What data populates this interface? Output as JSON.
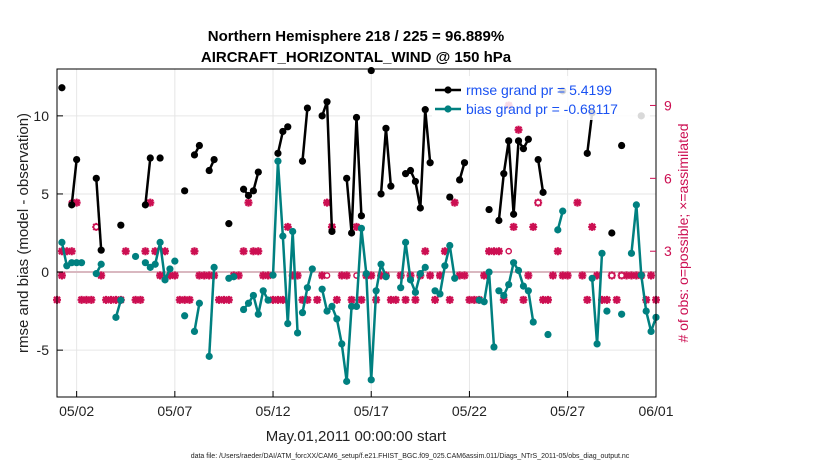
{
  "chart_data": {
    "type": "line",
    "title_line1": "Northern Hemisphere 218 / 225 = 96.889%",
    "title_line2": "AIRCRAFT_HORIZONTAL_WIND @ 150 hPa",
    "xlabel": "May.01,2011 00:00:00 start",
    "ylabel_left": "rmse and bias (model - observation)",
    "ylabel_right": "# of obs: o=possible; ×=assimilated",
    "footer": "data file: /Users/raeder/DAI/ATM_forcXX/CAM6_setup/f.e21.FHIST_BGC.f09_025.CAM6assim.011/Diags_NTrS_2011-05/obs_diag_output.nc",
    "xlim": [
      0.5,
      31.0
    ],
    "ylim_left": [
      -8,
      13
    ],
    "ylim_right": [
      -3,
      10.5
    ],
    "x_tick_values": [
      1.5,
      6.5,
      11.5,
      16.5,
      21.5,
      26.5,
      31.5
    ],
    "x_tick_labels": [
      "05/02",
      "05/07",
      "05/12",
      "05/17",
      "05/22",
      "05/27",
      "06/01"
    ],
    "y_tick_values_left": [
      -5,
      0,
      5,
      10
    ],
    "y_tick_labels_left": [
      "-5",
      "0",
      "5",
      "10"
    ],
    "y_tick_values_right": [
      3,
      6,
      9
    ],
    "y_tick_labels_right": [
      "3",
      "6",
      "9"
    ],
    "zero_line": 0,
    "colors": {
      "rmse": "#000000",
      "bias": "#008080",
      "obs": "#cc0f52",
      "zero": "#d9b8c0"
    },
    "legend": [
      {
        "name": "rmse grand pr = 5.4199",
        "color": "#000000"
      },
      {
        "name": "bias grand pr = -0.68117",
        "color": "#008080"
      }
    ],
    "series": [
      {
        "name": "rmse",
        "segments": [
          [
            [
              0.75,
              11.8
            ]
          ],
          [
            [
              1.25,
              4.3
            ],
            [
              1.5,
              7.2
            ]
          ],
          [
            [
              2.5,
              6.0
            ],
            [
              2.75,
              1.4
            ]
          ],
          [
            [
              3.75,
              3.0
            ]
          ],
          [
            [
              5.0,
              4.3
            ],
            [
              5.25,
              7.3
            ]
          ],
          [
            [
              5.75,
              7.3
            ]
          ],
          [
            [
              7.0,
              5.2
            ]
          ],
          [
            [
              7.5,
              7.5
            ],
            [
              7.75,
              8.1
            ]
          ],
          [
            [
              8.25,
              6.5
            ],
            [
              8.5,
              7.2
            ]
          ],
          [
            [
              9.25,
              3.1
            ]
          ],
          [
            [
              10.0,
              5.3
            ],
            [
              10.25,
              4.9
            ]
          ],
          [
            [
              10.5,
              5.2
            ],
            [
              10.75,
              6.4
            ]
          ],
          [
            [
              11.75,
              7.6
            ],
            [
              12.0,
              9.0
            ],
            [
              12.25,
              9.3
            ]
          ],
          [
            [
              13.0,
              7.1
            ],
            [
              13.25,
              10.5
            ]
          ],
          [
            [
              14.0,
              10.0
            ],
            [
              14.25,
              10.9
            ],
            [
              14.5,
              2.6
            ]
          ],
          [
            [
              15.25,
              6.0
            ],
            [
              15.5,
              2.5
            ],
            [
              15.75,
              9.9
            ],
            [
              16.0,
              3.6
            ]
          ],
          [
            [
              16.5,
              12.9
            ]
          ],
          [
            [
              17.0,
              5.0
            ],
            [
              17.25,
              9.2
            ],
            [
              17.5,
              5.5
            ]
          ],
          [
            [
              18.25,
              6.3
            ],
            [
              18.5,
              6.5
            ],
            [
              18.75,
              5.8
            ],
            [
              19.0,
              4.1
            ],
            [
              19.25,
              10.4
            ],
            [
              19.5,
              7.0
            ]
          ],
          [
            [
              20.5,
              4.8
            ]
          ],
          [
            [
              21.0,
              5.9
            ],
            [
              21.25,
              7.0
            ]
          ],
          [
            [
              22.5,
              4.0
            ]
          ],
          [
            [
              23.0,
              3.3
            ],
            [
              23.25,
              6.3
            ],
            [
              23.5,
              8.4
            ],
            [
              23.75,
              3.7
            ],
            [
              24.0,
              8.4
            ],
            [
              24.25,
              7.9
            ],
            [
              24.5,
              8.5
            ]
          ],
          [
            [
              25.0,
              7.2
            ],
            [
              25.25,
              5.1
            ]
          ],
          [
            [
              26.25,
              11.6
            ]
          ],
          [
            [
              27.5,
              7.6
            ],
            [
              27.75,
              10.2
            ]
          ],
          [
            [
              28.75,
              2.5
            ]
          ],
          [
            [
              29.25,
              8.1
            ]
          ],
          [
            [
              30.25,
              10.0
            ]
          ]
        ]
      },
      {
        "name": "bias",
        "segments": [
          [
            [
              0.75,
              1.9
            ],
            [
              1.0,
              0.4
            ],
            [
              1.25,
              0.6
            ],
            [
              1.5,
              0.6
            ],
            [
              1.75,
              0.6
            ]
          ],
          [
            [
              2.5,
              -0.1
            ],
            [
              2.75,
              0.5
            ]
          ],
          [
            [
              3.5,
              -2.9
            ],
            [
              3.75,
              -1.8
            ]
          ],
          [
            [
              4.5,
              1.0
            ]
          ],
          [
            [
              5.0,
              0.6
            ],
            [
              5.25,
              0.3
            ],
            [
              5.5,
              0.5
            ],
            [
              5.75,
              1.9
            ],
            [
              6.0,
              -0.5
            ],
            [
              6.25,
              0.2
            ]
          ],
          [
            [
              6.5,
              0.7
            ]
          ],
          [
            [
              7.0,
              -2.8
            ]
          ],
          [
            [
              7.5,
              -3.8
            ],
            [
              7.75,
              -2.0
            ]
          ],
          [
            [
              8.25,
              -5.4
            ],
            [
              8.5,
              0.3
            ]
          ],
          [
            [
              9.25,
              -0.4
            ],
            [
              9.5,
              -0.3
            ]
          ],
          [
            [
              10.0,
              -2.4
            ],
            [
              10.25,
              -2.0
            ],
            [
              10.5,
              -1.5
            ],
            [
              10.75,
              -2.7
            ],
            [
              11.0,
              -1.2
            ],
            [
              11.25,
              -1.8
            ]
          ],
          [
            [
              11.5,
              -0.2
            ],
            [
              11.75,
              7.1
            ],
            [
              12.0,
              2.3
            ],
            [
              12.25,
              -3.3
            ],
            [
              12.5,
              2.6
            ],
            [
              12.75,
              -3.9
            ]
          ],
          [
            [
              13.0,
              -2.6
            ],
            [
              13.25,
              -1.0
            ],
            [
              13.5,
              0.2
            ]
          ],
          [
            [
              14.0,
              -1.1
            ],
            [
              14.25,
              -2.5
            ],
            [
              14.5,
              -2.2
            ],
            [
              14.75,
              -3.0
            ],
            [
              15.0,
              -4.6
            ],
            [
              15.25,
              -7.0
            ],
            [
              15.5,
              -2.2
            ],
            [
              15.75,
              -2.2
            ],
            [
              16.0,
              2.8
            ],
            [
              16.25,
              -0.1
            ],
            [
              16.5,
              -6.9
            ],
            [
              16.75,
              -1.2
            ],
            [
              17.0,
              0.5
            ],
            [
              17.25,
              -0.3
            ]
          ],
          [
            [
              18.0,
              -1.0
            ],
            [
              18.25,
              1.9
            ],
            [
              18.5,
              -0.5
            ],
            [
              18.75,
              -1.3
            ],
            [
              19.0,
              -0.1
            ],
            [
              19.25,
              0.3
            ]
          ],
          [
            [
              19.75,
              -1.2
            ],
            [
              20.0,
              -1.4
            ],
            [
              20.25,
              0.4
            ],
            [
              20.5,
              1.7
            ],
            [
              20.75,
              -0.4
            ]
          ],
          [
            [
              22.0,
              -1.8
            ],
            [
              22.25,
              -1.9
            ],
            [
              22.5,
              0.0
            ],
            [
              22.75,
              -4.8
            ]
          ],
          [
            [
              23.0,
              -1.2
            ],
            [
              23.25,
              -1.5
            ],
            [
              23.5,
              -0.8
            ],
            [
              23.75,
              0.6
            ],
            [
              24.0,
              0.1
            ],
            [
              24.25,
              -0.9
            ],
            [
              24.5,
              -1.2
            ],
            [
              24.75,
              -3.2
            ]
          ],
          [
            [
              25.5,
              -4.0
            ]
          ],
          [
            [
              26.0,
              2.7
            ],
            [
              26.25,
              3.9
            ]
          ],
          [
            [
              27.75,
              -0.4
            ],
            [
              28.0,
              -4.6
            ],
            [
              28.25,
              1.2
            ]
          ],
          [
            [
              28.5,
              -2.5
            ]
          ],
          [
            [
              29.25,
              -2.7
            ]
          ],
          [
            [
              29.75,
              1.2
            ],
            [
              30.0,
              4.3
            ],
            [
              30.25,
              -0.2
            ],
            [
              30.5,
              -2.5
            ],
            [
              30.75,
              -3.8
            ],
            [
              31.0,
              -2.9
            ]
          ]
        ]
      }
    ],
    "obs_assimilated": [
      [
        0.5,
        1
      ],
      [
        0.75,
        3
      ],
      [
        0.75,
        2
      ],
      [
        1.0,
        3
      ],
      [
        1.25,
        3
      ],
      [
        1.5,
        5
      ],
      [
        1.75,
        1
      ],
      [
        2.0,
        1
      ],
      [
        2.25,
        1
      ],
      [
        2.5,
        4
      ],
      [
        2.75,
        2
      ],
      [
        3.0,
        1
      ],
      [
        3.25,
        1
      ],
      [
        3.5,
        1
      ],
      [
        3.75,
        1
      ],
      [
        4.0,
        3
      ],
      [
        4.5,
        1
      ],
      [
        4.75,
        1
      ],
      [
        5.0,
        3
      ],
      [
        5.25,
        5
      ],
      [
        5.5,
        3
      ],
      [
        5.75,
        2
      ],
      [
        6.0,
        3
      ],
      [
        6.25,
        2
      ],
      [
        6.5,
        2
      ],
      [
        6.75,
        1
      ],
      [
        7.0,
        1
      ],
      [
        7.25,
        1
      ],
      [
        7.5,
        3
      ],
      [
        7.75,
        2
      ],
      [
        8.0,
        2
      ],
      [
        8.25,
        2
      ],
      [
        8.5,
        2
      ],
      [
        8.75,
        1
      ],
      [
        9.0,
        1
      ],
      [
        9.25,
        1
      ],
      [
        9.5,
        2
      ],
      [
        9.75,
        2
      ],
      [
        10.0,
        3
      ],
      [
        10.25,
        5
      ],
      [
        10.5,
        3
      ],
      [
        10.75,
        3
      ],
      [
        11.0,
        2
      ],
      [
        11.25,
        2
      ],
      [
        11.5,
        1
      ],
      [
        11.75,
        1
      ],
      [
        12.0,
        1
      ],
      [
        12.25,
        4
      ],
      [
        12.5,
        2
      ],
      [
        12.75,
        2
      ],
      [
        13.0,
        1
      ],
      [
        13.25,
        1
      ],
      [
        13.75,
        1
      ],
      [
        14.0,
        2
      ],
      [
        14.25,
        5
      ],
      [
        14.5,
        4
      ],
      [
        14.75,
        1
      ],
      [
        15.0,
        2
      ],
      [
        15.25,
        2
      ],
      [
        15.5,
        1
      ],
      [
        15.75,
        4
      ],
      [
        16.0,
        1
      ],
      [
        16.25,
        2
      ],
      [
        16.5,
        2
      ],
      [
        16.75,
        1
      ],
      [
        17.0,
        2
      ],
      [
        17.25,
        2
      ],
      [
        17.5,
        1
      ],
      [
        17.75,
        1
      ],
      [
        18.0,
        2
      ],
      [
        18.25,
        1
      ],
      [
        18.5,
        2
      ],
      [
        18.75,
        1
      ],
      [
        19.0,
        2
      ],
      [
        19.25,
        3
      ],
      [
        19.5,
        2
      ],
      [
        19.75,
        1
      ],
      [
        20.0,
        2
      ],
      [
        20.25,
        3
      ],
      [
        20.5,
        1
      ],
      [
        20.75,
        5
      ],
      [
        21.0,
        2
      ],
      [
        21.25,
        2
      ],
      [
        21.5,
        1
      ],
      [
        21.75,
        1
      ],
      [
        22.0,
        1
      ],
      [
        22.25,
        2
      ],
      [
        22.5,
        3
      ],
      [
        22.75,
        3
      ],
      [
        23.0,
        3
      ],
      [
        23.25,
        1
      ],
      [
        23.5,
        9
      ],
      [
        23.75,
        4
      ],
      [
        24.0,
        8
      ],
      [
        24.25,
        1
      ],
      [
        24.5,
        2
      ],
      [
        24.75,
        4
      ],
      [
        25.0,
        5
      ],
      [
        25.25,
        1
      ],
      [
        25.5,
        1
      ],
      [
        25.75,
        2
      ],
      [
        26.0,
        3
      ],
      [
        26.25,
        2
      ],
      [
        26.5,
        2
      ],
      [
        27.0,
        5
      ],
      [
        27.25,
        2
      ],
      [
        27.5,
        1
      ],
      [
        27.75,
        4
      ],
      [
        28.0,
        2
      ],
      [
        28.25,
        1
      ],
      [
        28.5,
        1
      ],
      [
        28.75,
        2
      ],
      [
        29.0,
        1
      ],
      [
        29.25,
        2
      ],
      [
        29.5,
        2
      ],
      [
        29.75,
        2
      ],
      [
        30.0,
        2
      ],
      [
        30.25,
        2
      ],
      [
        30.5,
        1
      ],
      [
        30.75,
        2
      ],
      [
        31.0,
        1
      ]
    ],
    "obs_possible": [
      [
        1.25,
        5
      ],
      [
        2.5,
        4
      ],
      [
        14.25,
        2
      ],
      [
        15.75,
        2
      ],
      [
        23.5,
        3
      ],
      [
        25.0,
        5
      ],
      [
        28.75,
        2
      ],
      [
        29.25,
        2
      ]
    ]
  }
}
